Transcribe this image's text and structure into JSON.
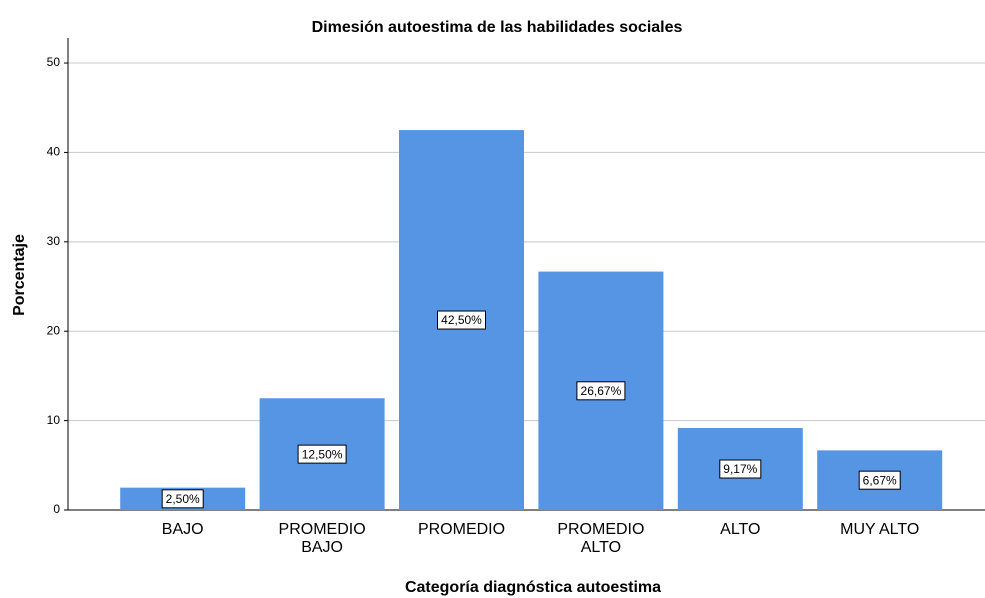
{
  "chart_data": {
    "type": "bar",
    "title": "Dimesión autoestima de las habilidades sociales",
    "xlabel": "Categoría diagnóstica autoestima",
    "ylabel": "Porcentaje",
    "categories": [
      "BAJO",
      "PROMEDIO\nBAJO",
      "PROMEDIO",
      "PROMEDIO\nALTO",
      "ALTO",
      "MUY ALTO"
    ],
    "values": [
      2.5,
      12.5,
      42.5,
      26.67,
      9.17,
      6.67
    ],
    "value_labels": [
      "2,50%",
      "12,50%",
      "42,50%",
      "26,67%",
      "9,17%",
      "6,67%"
    ],
    "color": "#5694e4",
    "ylim": [
      0,
      52.8
    ],
    "yticks": [
      0,
      10,
      20,
      30,
      40,
      50
    ],
    "grid": true
  }
}
